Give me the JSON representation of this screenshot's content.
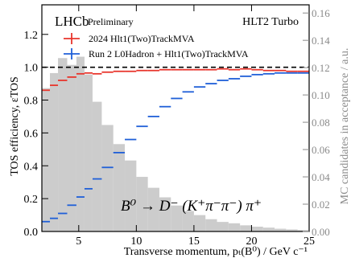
{
  "chart_data": {
    "type": "scatter",
    "experiment": "LHCb",
    "experiment_tag": "Preliminary",
    "trigger": "HLT2 Turbo",
    "decay_label": "B⁰ → D⁻ (K⁺π⁻π⁻) π⁺",
    "xlabel": "Transverse momentum, pₜ(B⁰) / GeV c⁻¹",
    "ylabel": "TOS efficiency, εTOS",
    "y2label": "MC candidates in acceptance / a.u.",
    "xlim": [
      1.8,
      25
    ],
    "ylim": [
      0,
      1.38
    ],
    "y2lim": [
      0,
      0.166
    ],
    "x_ticks": [
      5,
      10,
      15,
      20,
      25
    ],
    "y_ticks": [
      0.0,
      0.2,
      0.4,
      0.6,
      0.8,
      1.0,
      1.2
    ],
    "y2_ticks": [
      0.0,
      0.02,
      0.04,
      0.06,
      0.08,
      0.1,
      0.12,
      0.14,
      0.16
    ],
    "x_tick_labels": [
      "5",
      "10",
      "15",
      "20",
      "25"
    ],
    "y_tick_labels": [
      "0.0",
      "0.2",
      "0.4",
      "0.6",
      "0.8",
      "1.0",
      "1.2"
    ],
    "y2_tick_labels": [
      "0.00",
      "0.02",
      "0.04",
      "0.06",
      "0.08",
      "0.10",
      "0.12",
      "0.14",
      "0.16"
    ],
    "reference_line": 1.0,
    "bin_edges": [
      1.8,
      2.5,
      3.2,
      4.0,
      4.8,
      5.5,
      6.2,
      7.0,
      8.0,
      9.0,
      10.0,
      11.0,
      12.0,
      13.0,
      14.0,
      15.0,
      16.0,
      17.0,
      18.0,
      19.0,
      20.0,
      21.0,
      22.0,
      23.0,
      24.0,
      25.0
    ],
    "histogram": [
      0.105,
      0.116,
      0.127,
      0.122,
      0.128,
      0.115,
      0.095,
      0.078,
      0.064,
      0.052,
      0.04,
      0.032,
      0.025,
      0.019,
      0.015,
      0.012,
      0.009,
      0.007,
      0.006,
      0.0045,
      0.0035,
      0.0028,
      0.002,
      0.0015,
      0.001
    ],
    "series": [
      {
        "name": "2024 Hlt1(Two)TrackMVA",
        "color": "#e8352c",
        "values": [
          0.86,
          0.89,
          0.92,
          0.94,
          0.96,
          0.965,
          0.96,
          0.97,
          0.975,
          0.975,
          0.98,
          0.98,
          0.985,
          0.985,
          0.985,
          0.985,
          0.985,
          0.99,
          0.985,
          0.99,
          0.985,
          0.98,
          0.98,
          0.975,
          0.975
        ]
      },
      {
        "name": "Run 2 L0Hadron + Hlt1(Two)TrackMVA",
        "color": "#1f5fd8",
        "values": [
          0.06,
          0.08,
          0.11,
          0.16,
          0.21,
          0.26,
          0.32,
          0.39,
          0.48,
          0.56,
          0.64,
          0.7,
          0.76,
          0.81,
          0.85,
          0.88,
          0.9,
          0.92,
          0.93,
          0.945,
          0.955,
          0.96,
          0.965,
          0.965,
          0.965
        ]
      }
    ]
  }
}
